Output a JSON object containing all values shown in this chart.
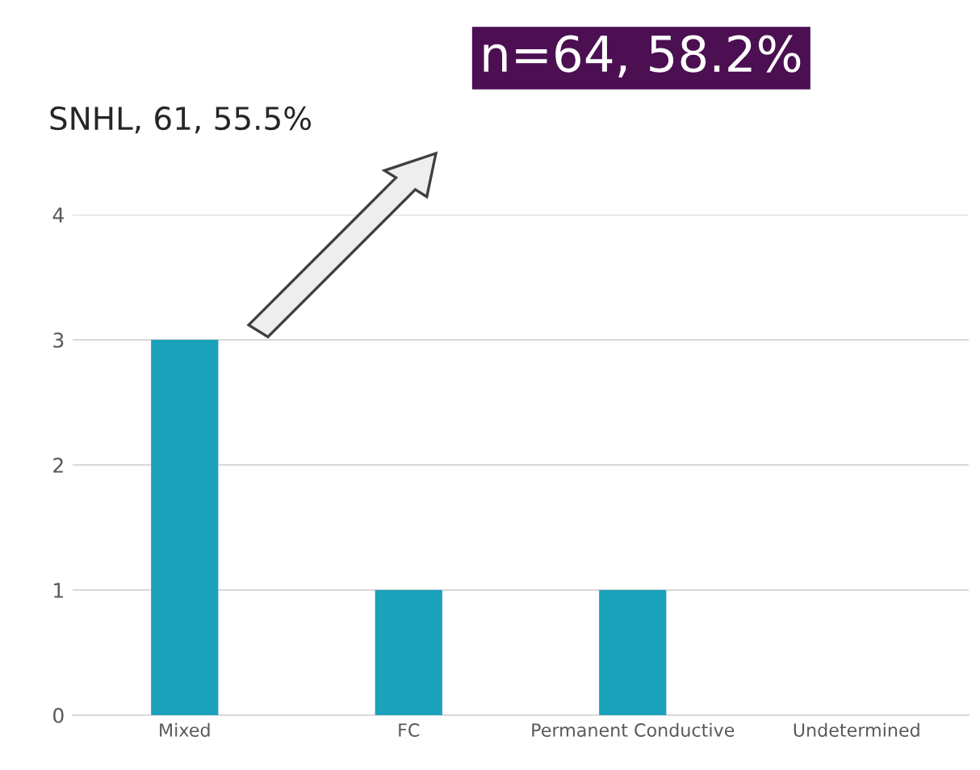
{
  "chart_data": {
    "type": "bar",
    "categories": [
      "Mixed",
      "FC",
      "Permanent Conductive",
      "Undetermined"
    ],
    "values": [
      3,
      1,
      1,
      0
    ],
    "color": "#1ba1ba",
    "ylim": [
      0,
      4
    ],
    "yticks": [
      0,
      1,
      2,
      3,
      4
    ],
    "grid": "y",
    "legend": false,
    "annotations": [
      "SNHL, 61, 55.5%",
      "n=64, 58.2%"
    ]
  }
}
